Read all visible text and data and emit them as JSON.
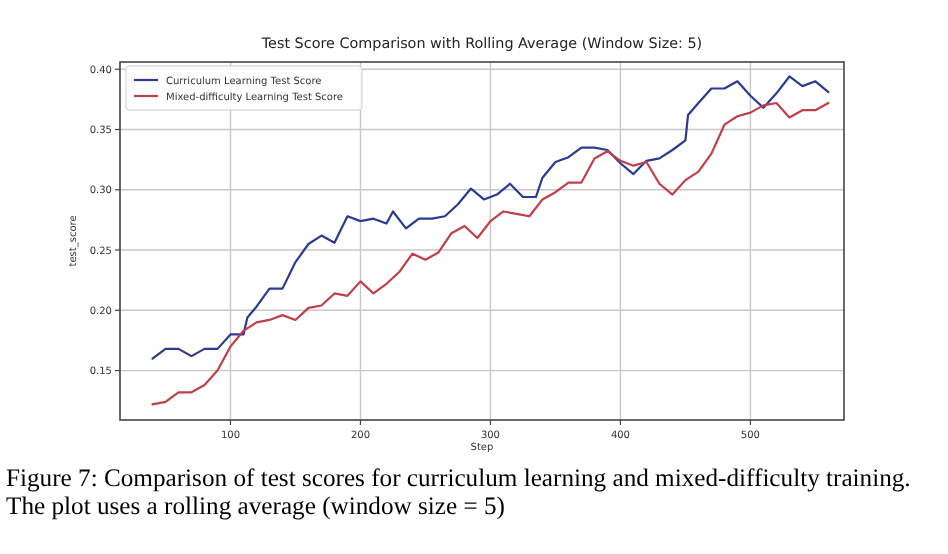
{
  "chart_data": {
    "type": "line",
    "title": "Test Score Comparison with Rolling Average (Window Size: 5)",
    "xlabel": "Step",
    "ylabel": "test_score",
    "xlim": [
      15,
      572
    ],
    "ylim": [
      0.109,
      0.406
    ],
    "xticks": [
      100,
      200,
      300,
      400,
      500
    ],
    "yticks": [
      {
        "value": 0.15,
        "label": "0.15"
      },
      {
        "value": 0.2,
        "label": "0.20"
      },
      {
        "value": 0.25,
        "label": "0.25"
      },
      {
        "value": 0.3,
        "label": "0.30"
      },
      {
        "value": 0.35,
        "label": "0.35"
      },
      {
        "value": 0.4,
        "label": "0.40"
      }
    ],
    "grid": true,
    "legend": "top left",
    "marker": "none",
    "line_style": "solid",
    "series": [
      {
        "name": "Curriculum Learning Test Score",
        "color": "#2b3a92",
        "x": [
          40,
          50,
          60,
          70,
          80,
          90,
          100,
          110,
          113,
          120,
          130,
          140,
          150,
          160,
          170,
          180,
          190,
          200,
          210,
          220,
          225,
          235,
          245,
          255,
          265,
          275,
          285,
          295,
          305,
          315,
          325,
          335,
          340,
          350,
          360,
          370,
          380,
          390,
          400,
          410,
          420,
          430,
          440,
          450,
          452,
          460,
          470,
          480,
          490,
          500,
          510,
          520,
          530,
          540,
          550,
          560
        ],
        "values": [
          0.16,
          0.168,
          0.168,
          0.162,
          0.168,
          0.168,
          0.18,
          0.18,
          0.194,
          0.203,
          0.218,
          0.218,
          0.24,
          0.255,
          0.262,
          0.256,
          0.278,
          0.274,
          0.276,
          0.272,
          0.282,
          0.268,
          0.276,
          0.276,
          0.278,
          0.288,
          0.301,
          0.292,
          0.296,
          0.305,
          0.294,
          0.294,
          0.31,
          0.323,
          0.327,
          0.335,
          0.335,
          0.333,
          0.322,
          0.313,
          0.324,
          0.326,
          0.333,
          0.341,
          0.362,
          0.372,
          0.384,
          0.384,
          0.39,
          0.378,
          0.368,
          0.38,
          0.394,
          0.386,
          0.39,
          0.381
        ]
      },
      {
        "name": "Mixed-difficulty Learning Test Score",
        "color": "#c0404a",
        "x": [
          40,
          50,
          60,
          70,
          80,
          90,
          100,
          110,
          120,
          130,
          140,
          150,
          160,
          170,
          180,
          190,
          200,
          210,
          220,
          230,
          240,
          250,
          260,
          270,
          280,
          290,
          300,
          310,
          320,
          330,
          340,
          350,
          360,
          370,
          380,
          390,
          400,
          410,
          420,
          430,
          440,
          450,
          460,
          470,
          480,
          490,
          500,
          510,
          520,
          530,
          540,
          550,
          560
        ],
        "values": [
          0.122,
          0.124,
          0.132,
          0.132,
          0.138,
          0.15,
          0.17,
          0.183,
          0.19,
          0.192,
          0.196,
          0.192,
          0.202,
          0.204,
          0.214,
          0.212,
          0.224,
          0.214,
          0.222,
          0.232,
          0.247,
          0.242,
          0.248,
          0.264,
          0.27,
          0.26,
          0.274,
          0.282,
          0.28,
          0.278,
          0.292,
          0.298,
          0.306,
          0.306,
          0.326,
          0.332,
          0.324,
          0.32,
          0.323,
          0.305,
          0.296,
          0.308,
          0.315,
          0.33,
          0.354,
          0.361,
          0.364,
          0.37,
          0.372,
          0.36,
          0.366,
          0.366,
          0.372
        ]
      }
    ],
    "annotations": [
      "Figure 7: Comparison of test scores for curriculum learning and mixed-difficulty training. The plot uses a rolling average (window size = 5)"
    ]
  }
}
